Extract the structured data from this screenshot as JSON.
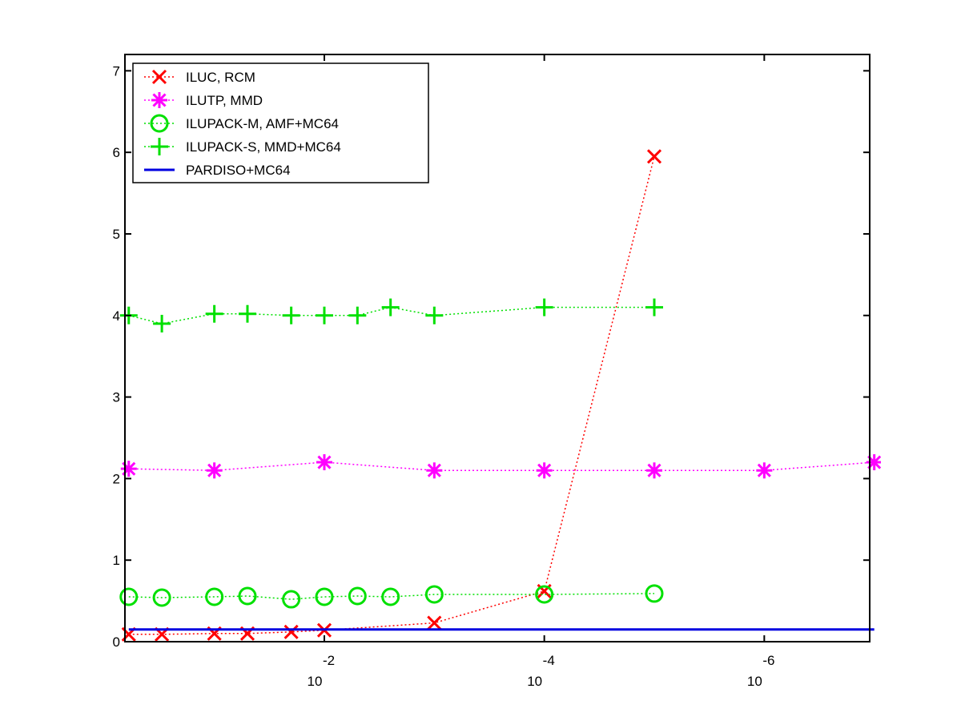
{
  "chart_data": {
    "type": "line",
    "title": "",
    "xlabel": "",
    "ylabel": "",
    "x_scale": "log",
    "x_direction": "reversed",
    "xlim": [
      0.65,
      1.1e-07
    ],
    "ylim": [
      0,
      7.2
    ],
    "grid": false,
    "legend_position": "top-left",
    "x_ticks": [
      {
        "value": 0.01,
        "base": "10",
        "exponent": "-2"
      },
      {
        "value": 0.0001,
        "base": "10",
        "exponent": "-4"
      },
      {
        "value": 1e-06,
        "base": "10",
        "exponent": "-6"
      }
    ],
    "y_ticks": [
      {
        "value": 0,
        "label": "0"
      },
      {
        "value": 1,
        "label": "1"
      },
      {
        "value": 2,
        "label": "2"
      },
      {
        "value": 3,
        "label": "3"
      },
      {
        "value": 4,
        "label": "4"
      },
      {
        "value": 5,
        "label": "5"
      },
      {
        "value": 6,
        "label": "6"
      },
      {
        "value": 7,
        "label": "7"
      }
    ],
    "series": [
      {
        "name": "ILUC, RCM",
        "color": "#ff0000",
        "marker": "x",
        "line": "dotted",
        "x": [
          0.6,
          0.3,
          0.1,
          0.05,
          0.02,
          0.01,
          0.001,
          0.0001,
          1e-05
        ],
        "y": [
          0.09,
          0.09,
          0.1,
          0.1,
          0.12,
          0.14,
          0.23,
          0.62,
          5.95
        ]
      },
      {
        "name": "ILUTP, MMD",
        "color": "#ff00ff",
        "marker": "asterisk",
        "line": "dotted",
        "x": [
          0.6,
          0.1,
          0.01,
          0.001,
          0.0001,
          1e-05,
          1e-06,
          1e-07
        ],
        "y": [
          2.12,
          2.1,
          2.2,
          2.1,
          2.1,
          2.1,
          2.1,
          2.2
        ]
      },
      {
        "name": "ILUPACK-M, AMF+MC64",
        "color": "#00e000",
        "marker": "circle",
        "line": "dotted",
        "x": [
          0.6,
          0.3,
          0.1,
          0.05,
          0.02,
          0.01,
          0.005,
          0.0025,
          0.001,
          0.0001,
          1e-05
        ],
        "y": [
          0.55,
          0.54,
          0.55,
          0.56,
          0.52,
          0.55,
          0.56,
          0.55,
          0.58,
          0.58,
          0.59
        ]
      },
      {
        "name": "ILUPACK-S, MMD+MC64",
        "color": "#00e000",
        "marker": "plus",
        "line": "dotted",
        "x": [
          0.6,
          0.3,
          0.1,
          0.05,
          0.02,
          0.01,
          0.005,
          0.0025,
          0.001,
          0.0001,
          1e-05
        ],
        "y": [
          4.0,
          3.9,
          4.02,
          4.02,
          4.0,
          4.0,
          4.0,
          4.1,
          4.0,
          4.1,
          4.1
        ]
      },
      {
        "name": "PARDISO+MC64",
        "color": "#0000e0",
        "marker": "none",
        "line": "solid",
        "x": [
          0.6,
          1e-07
        ],
        "y": [
          0.15,
          0.15
        ]
      }
    ]
  }
}
